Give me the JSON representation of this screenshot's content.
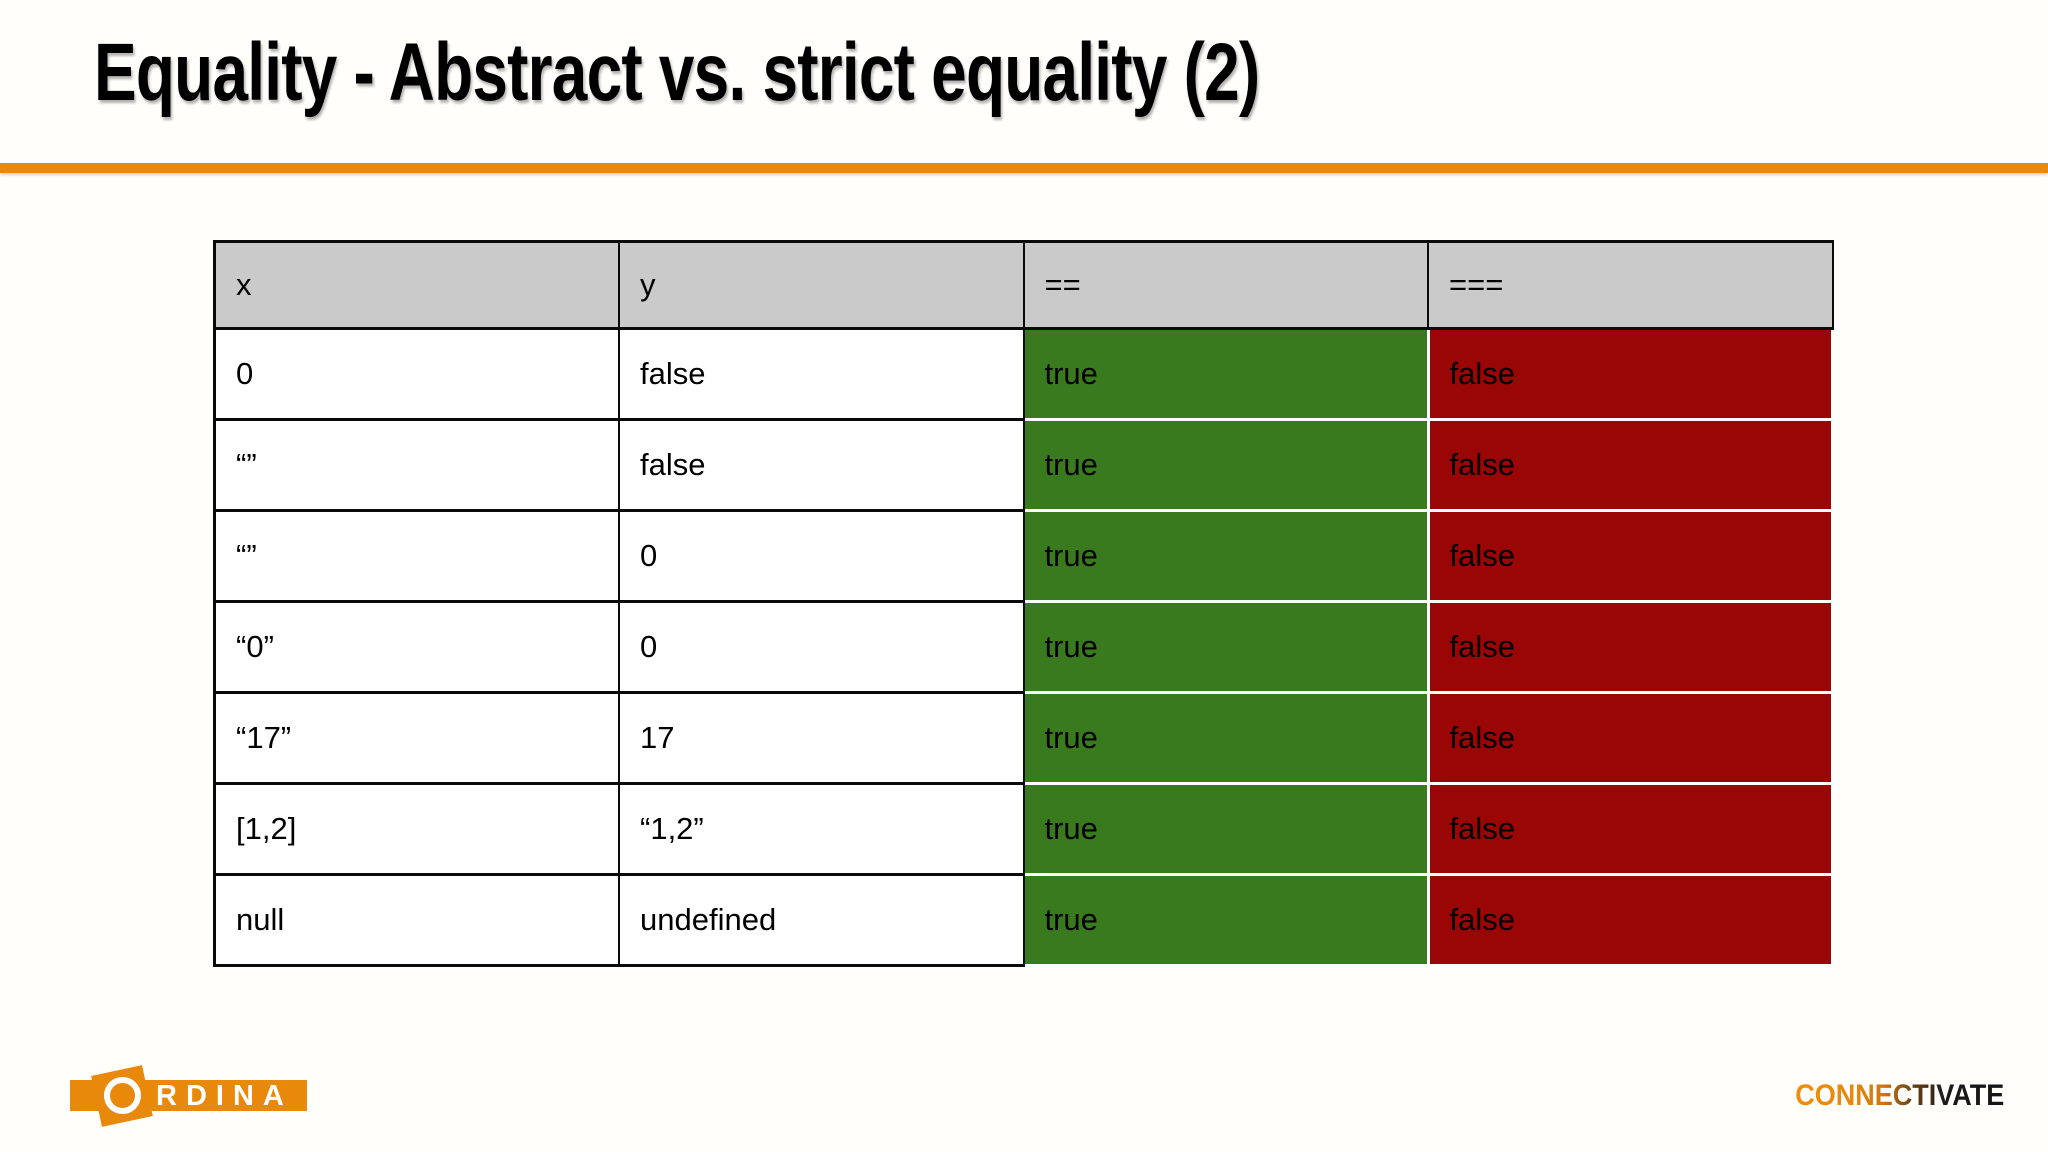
{
  "slide": {
    "title": "Equality - Abstract vs. strict equality (2)",
    "accent_color": "#E8890B"
  },
  "table": {
    "headers": [
      "x",
      "y",
      "==",
      "==="
    ],
    "rows": [
      {
        "x": "0",
        "y": "false",
        "eq": "true",
        "eqq": "false"
      },
      {
        "x": "“”",
        "y": "false",
        "eq": "true",
        "eqq": "false"
      },
      {
        "x": "“”",
        "y": "0",
        "eq": "true",
        "eqq": "false"
      },
      {
        "x": "“0”",
        "y": "0",
        "eq": "true",
        "eqq": "false"
      },
      {
        "x": "“17”",
        "y": "17",
        "eq": "true",
        "eqq": "false"
      },
      {
        "x": "[1,2]",
        "y": "“1,2”",
        "eq": "true",
        "eqq": "false"
      },
      {
        "x": "null",
        "y": "undefined",
        "eq": "true",
        "eqq": "false"
      }
    ],
    "colors": {
      "header_bg": "#CACACA",
      "true_bg": "#3A7A1E",
      "false_bg": "#9A0505"
    }
  },
  "footer": {
    "ordina": {
      "name": "ORDINA",
      "text_after_o": "RDINA"
    },
    "connectivate": "CONNECTIVATE"
  }
}
